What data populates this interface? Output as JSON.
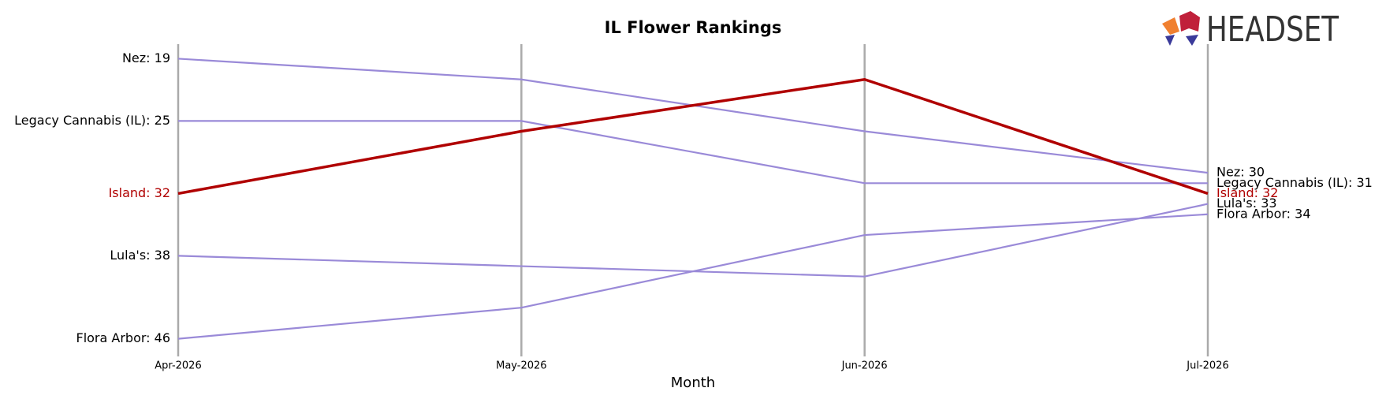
{
  "chart_data": {
    "type": "bump",
    "title": "IL Flower Rankings",
    "x_label": "Month",
    "logo": "HEADSET",
    "categories": [
      "Apr-2026",
      "May-2026",
      "Jun-2026",
      "Jul-2026"
    ],
    "ylim": [
      47.7,
      17.6
    ],
    "grid": true,
    "grid_color": "#aaaaaa",
    "series": [
      {
        "name": "Nez",
        "color": "#9a8ad8",
        "values": [
          19,
          21,
          26,
          30
        ],
        "value_labels": [
          "Nez: 19",
          null,
          null,
          "Nez: 30"
        ]
      },
      {
        "name": "Legacy Cannabis (IL)",
        "color": "#9a8ad8",
        "values": [
          25,
          25,
          31,
          31
        ],
        "value_labels": [
          "Legacy Cannabis (IL): 25",
          null,
          null,
          "Legacy Cannabis (IL): 31"
        ]
      },
      {
        "name": "Lula's",
        "color": "#9a8ad8",
        "values": [
          38,
          39,
          40,
          33
        ],
        "value_labels": [
          "Lula's: 38",
          null,
          null,
          "Lula's: 33"
        ]
      },
      {
        "name": "Flora Arbor",
        "color": "#9a8ad8",
        "values": [
          46,
          43,
          36,
          34
        ],
        "value_labels": [
          "Flora Arbor: 46",
          null,
          null,
          "Flora Arbor: 34"
        ]
      },
      {
        "name": "Island",
        "color": "#b00000",
        "highlight": true,
        "values": [
          32,
          26,
          21,
          32
        ],
        "value_labels": [
          "Island: 32",
          null,
          null,
          "Island: 32"
        ]
      }
    ]
  }
}
